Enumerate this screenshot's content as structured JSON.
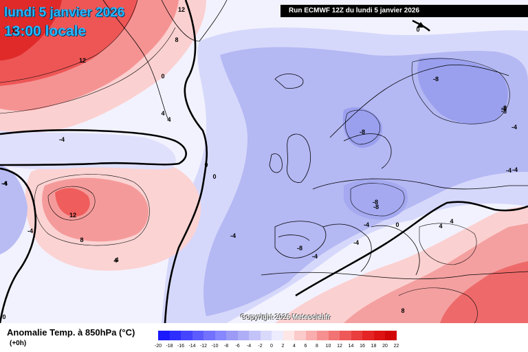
{
  "header": {
    "date": "lundi 5 janvier 2026",
    "time": "13:00 locale",
    "run": "Run ECMWF 12Z du lundi 5 janvier 2026"
  },
  "copyright": "Copyright 2026 Meteociel.fr",
  "legend": {
    "title": "Anomalie Temp. à 850hPa (°C)",
    "subtitle": "(+0h)",
    "ticks": [
      "-20",
      "-18",
      "-16",
      "-14",
      "-12",
      "-10",
      "-8",
      "-6",
      "-4",
      "-2",
      "0",
      "2",
      "4",
      "6",
      "8",
      "10",
      "12",
      "14",
      "16",
      "18",
      "20",
      "22"
    ],
    "colors": [
      "#1a1aff",
      "#2e2eff",
      "#4545ff",
      "#5c5cff",
      "#7272ff",
      "#8787ff",
      "#9b9bf5",
      "#aeaef7",
      "#c3c3fa",
      "#d9d9fc",
      "#ececfe",
      "#fde6e6",
      "#fbcaca",
      "#f9adad",
      "#f69090",
      "#f27373",
      "#ee5858",
      "#ea3d3d",
      "#e52525",
      "#dd1313",
      "#d10505"
    ]
  },
  "contour_labels": [
    "12",
    "8",
    "12",
    "12",
    "0",
    "-4",
    "4",
    "4",
    "12",
    "8",
    "4",
    "0",
    "0",
    "-4",
    "-8",
    "-8",
    "-4",
    "0",
    "-8",
    "-8",
    "-4",
    "-8",
    "-4",
    "-4",
    "-4",
    "-4",
    "-8",
    "-8",
    "-8",
    "-4",
    "4",
    "0",
    "4",
    "0",
    "-4",
    "-4",
    "8",
    "4"
  ],
  "colors": {
    "warm_strong": "#ee3b3b",
    "warm_mid": "#f58a8a",
    "warm_light": "#fbd3d3",
    "cold_light": "#dcdcfa",
    "cold_mid": "#aeb2f2",
    "cold_strong": "#8b92ea",
    "land_line": "#000000"
  }
}
